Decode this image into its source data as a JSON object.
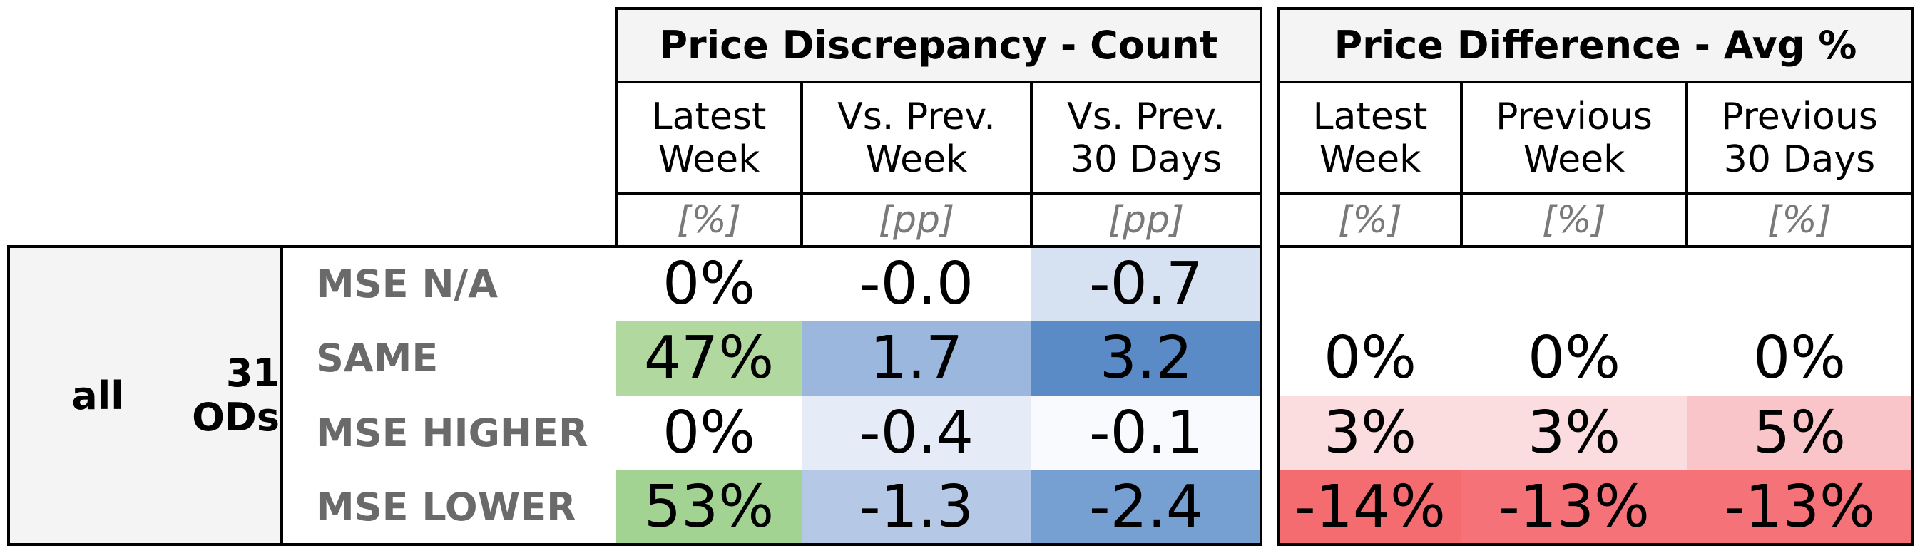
{
  "chart_data": {
    "type": "table",
    "groups": [
      {
        "title": "Price Discrepancy - Count",
        "columns": [
          {
            "label": "Latest\nWeek",
            "unit": "[%]"
          },
          {
            "label": "Vs. Prev.\nWeek",
            "unit": "[pp]"
          },
          {
            "label": "Vs. Prev.\n30 Days",
            "unit": "[pp]"
          }
        ]
      },
      {
        "title": "Price Difference - Avg %",
        "columns": [
          {
            "label": "Latest\nWeek",
            "unit": "[%]"
          },
          {
            "label": "Previous\nWeek",
            "unit": "[%]"
          },
          {
            "label": "Previous\n30 Days",
            "unit": "[%]"
          }
        ]
      }
    ],
    "row_group": {
      "label": "all",
      "count": "31\nODs"
    },
    "rows": [
      {
        "label": "MSE N/A",
        "count": [
          "0%",
          "-0.0",
          "-0.7"
        ],
        "count_colors": [
          "#ffffff",
          "#ffffff",
          "#d6e2f2"
        ],
        "avg": [
          "",
          "",
          ""
        ],
        "avg_colors": [
          "#ffffff",
          "#ffffff",
          "#ffffff"
        ]
      },
      {
        "label": "SAME",
        "count": [
          "47%",
          "1.7",
          "3.2"
        ],
        "count_colors": [
          "#b1d99f",
          "#9cb7de",
          "#5a8bc6"
        ],
        "avg": [
          "0%",
          "0%",
          "0%"
        ],
        "avg_colors": [
          "#ffffff",
          "#ffffff",
          "#ffffff"
        ]
      },
      {
        "label": "MSE HIGHER",
        "count": [
          "0%",
          "-0.4",
          "-0.1"
        ],
        "count_colors": [
          "#ffffff",
          "#e6ecf7",
          "#f8fafd"
        ],
        "avg": [
          "3%",
          "3%",
          "5%"
        ],
        "avg_colors": [
          "#fbdddf",
          "#fbdddf",
          "#f9c5c8"
        ]
      },
      {
        "label": "MSE LOWER",
        "count": [
          "53%",
          "-1.3",
          "-2.4"
        ],
        "count_colors": [
          "#a3d393",
          "#b5c9e6",
          "#769fd2"
        ],
        "avg": [
          "-14%",
          "-13%",
          "-13%"
        ],
        "avg_colors": [
          "#f46b70",
          "#f57378",
          "#f57378"
        ]
      }
    ]
  }
}
